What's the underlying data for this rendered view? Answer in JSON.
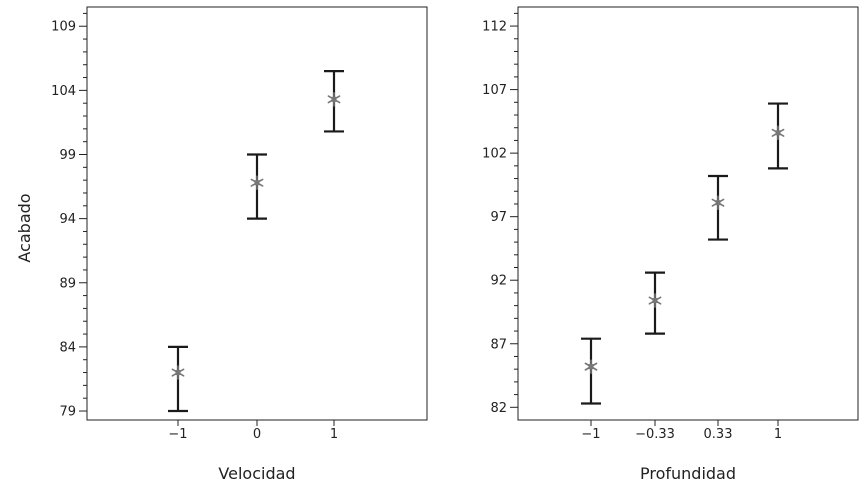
{
  "chart_data": [
    {
      "type": "scatter",
      "variant": "interval-plot",
      "xlabel": "Velocidad",
      "ylabel": "Acabado",
      "categories": [
        "−1",
        "0",
        "1"
      ],
      "yticks": [
        "79",
        "84",
        "89",
        "94",
        "99",
        "104",
        "109"
      ],
      "ylim": [
        78.3,
        110.5
      ],
      "series": [
        {
          "mean": [
            82.0,
            96.8,
            103.3
          ],
          "lower": [
            79.0,
            94.0,
            100.8
          ],
          "upper": [
            84.0,
            99.0,
            105.5
          ]
        }
      ]
    },
    {
      "type": "scatter",
      "variant": "interval-plot",
      "xlabel": "Profundidad",
      "ylabel": "",
      "categories": [
        "−1",
        "−0.33",
        "0.33",
        "1"
      ],
      "yticks": [
        "82",
        "87",
        "92",
        "97",
        "102",
        "107",
        "112"
      ],
      "ylim": [
        81.0,
        113.5
      ],
      "series": [
        {
          "mean": [
            85.2,
            90.4,
            98.1,
            103.6
          ],
          "lower": [
            82.3,
            87.8,
            95.2,
            100.8
          ],
          "upper": [
            87.4,
            92.6,
            100.2,
            105.9
          ]
        }
      ]
    }
  ],
  "style": {
    "frame_color": "#222222",
    "errorbar_color": "#1a1a1a",
    "marker_color": "#777777"
  }
}
